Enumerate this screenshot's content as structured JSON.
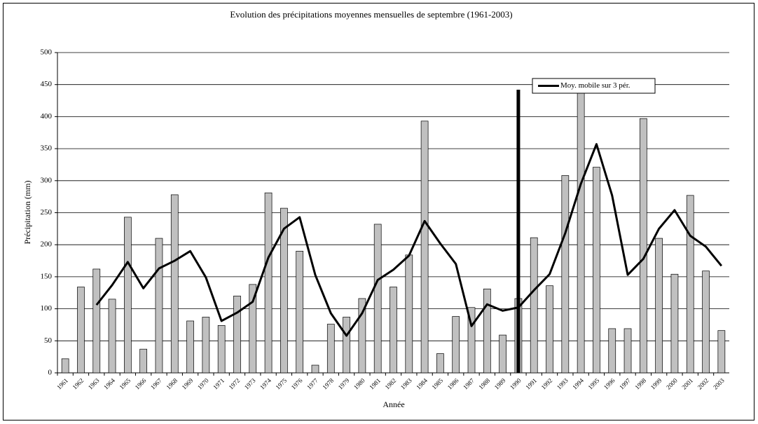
{
  "chart_data": {
    "type": "bar",
    "title": "Evolution des précipitations moyennes mensuelles de septembre (1961-2003)",
    "x_label": "Année",
    "y_label": "Précipitation (mm)",
    "categories": [
      "1961",
      "1962",
      "1963",
      "1964",
      "1965",
      "1966",
      "1967",
      "1968",
      "1969",
      "1970",
      "1971",
      "1972",
      "1973",
      "1974",
      "1975",
      "1976",
      "1977",
      "1978",
      "1979",
      "1980",
      "1981",
      "1982",
      "1983",
      "1984",
      "1985",
      "1986",
      "1987",
      "1988",
      "1989",
      "1990",
      "1991",
      "1992",
      "1993",
      "1994",
      "1995",
      "1996",
      "1997",
      "1998",
      "1999",
      "2000",
      "2001",
      "2002",
      "2003"
    ],
    "series": [
      {
        "type": "bar",
        "color": "#c0c0c0",
        "values": [
          22,
          134,
          162,
          115,
          243,
          37,
          210,
          278,
          81,
          87,
          74,
          120,
          138,
          281,
          257,
          190,
          12,
          76,
          87,
          116,
          232,
          134,
          184,
          393,
          30,
          88,
          102,
          131,
          59,
          116,
          211,
          136,
          308,
          441,
          321,
          69,
          69,
          397,
          210,
          154,
          277,
          159,
          66
        ]
      },
      {
        "type": "line",
        "name": "Moy. mobile sur 3 pér.",
        "color": "#000000",
        "values": [
          null,
          null,
          106,
          137,
          173,
          132,
          163,
          175,
          190,
          149,
          81,
          94,
          111,
          180,
          225,
          243,
          153,
          93,
          58,
          93,
          145,
          161,
          183,
          237,
          202,
          170,
          73,
          107,
          97,
          102,
          129,
          154,
          218,
          295,
          357,
          277,
          153,
          178,
          225,
          254,
          214,
          197,
          167
        ]
      }
    ],
    "reference_line": {
      "at": "1990",
      "top": 442
    },
    "ylim": [
      0,
      500
    ],
    "yticks": [
      0,
      50,
      100,
      150,
      200,
      250,
      300,
      350,
      400,
      450,
      500
    ],
    "grid": true,
    "legend": "top-right"
  }
}
